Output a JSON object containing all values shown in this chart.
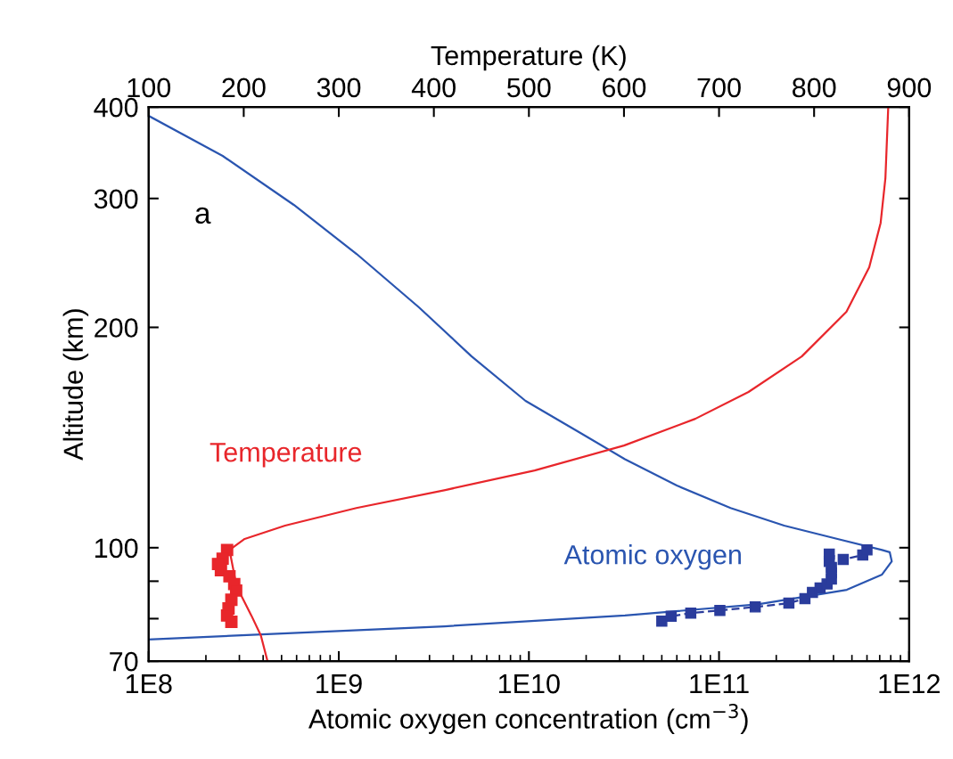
{
  "chart_data": {
    "type": "line",
    "xlabel": "Atomic oxygen concentration (cm$^{−3}$)",
    "x2label": "Temperature (K)",
    "ylabel": "Altitude (km)",
    "log": "xy",
    "grid": false,
    "legend": false,
    "xlim": [
      100000000.0,
      1000000000000.0
    ],
    "xticks": [
      {
        "value": 100000000.0,
        "label": "1E8"
      },
      {
        "value": 1000000000.0,
        "label": "1E9"
      },
      {
        "value": 10000000000.0,
        "label": "1E10"
      },
      {
        "value": 100000000000.0,
        "label": "1E11"
      },
      {
        "value": 1000000000000.0,
        "label": "1E12"
      }
    ],
    "x2lim": [
      100,
      900
    ],
    "x2ticks": [
      100,
      200,
      300,
      400,
      500,
      600,
      700,
      800,
      900
    ],
    "ylim": [
      70,
      400
    ],
    "yticks": [
      70,
      {
        "value": 80,
        "label": null
      },
      {
        "value": 90,
        "label": null
      },
      100,
      200,
      300,
      400
    ],
    "annotations": [
      "a"
    ],
    "series": [
      {
        "name": "Temperature",
        "axis": "x2",
        "color": "#e8262b",
        "marker": "none",
        "line_style": "solid",
        "x": [
          225,
          218,
          208,
          197,
          192,
          185,
          201,
          243.5,
          318.5,
          412,
          506,
          600,
          675,
          731,
          787,
          834,
          858,
          870,
          875,
          878
        ],
        "values": [
          70,
          75.9,
          80.8,
          86.2,
          89.2,
          99.3,
          102.8,
          107.2,
          113.3,
          119.9,
          127.5,
          137.9,
          150,
          163.2,
          182.5,
          210,
          241.6,
          277.8,
          319.6,
          400
        ]
      },
      {
        "type": "scatter",
        "axis": "x2",
        "color": "#e8262b",
        "marker": "square",
        "x": [
          182.5,
          177.8,
          173,
          176,
          185,
          190,
          192,
          187,
          184,
          182.5,
          187
        ],
        "values": [
          99.3,
          96.6,
          95.0,
          93.2,
          91.4,
          89.2,
          87.4,
          84.9,
          82.6,
          80.8,
          79.2
        ]
      },
      {
        "name": "Atomic oxygen",
        "color": "#2a55b0",
        "marker": "none",
        "line_style": "solid",
        "x": [
          100000000.0,
          245000000.0,
          580000000.0,
          1240000000.0,
          2640000000.0,
          5000000000.0,
          9600000000.0,
          18400000000.0,
          32000000000.0,
          60000000000.0,
          115000000000.0,
          220000000000.0,
          420000000000.0,
          720000000000.0,
          790000000000.0,
          810000000000.0,
          720000000000.0,
          470000000000.0,
          160000000000.0,
          32000000000.0,
          3600000000.0,
          420000000.0,
          100000000.0
        ],
        "values": [
          389,
          343,
          294,
          252,
          213,
          182.5,
          158.7,
          143.8,
          132.1,
          121.6,
          113.3,
          107.2,
          102.8,
          99.3,
          98.6,
          95.8,
          91.9,
          87.6,
          83.7,
          80.8,
          78.1,
          76.2,
          74.9
        ]
      },
      {
        "color": "#2a3c9c",
        "marker": "square",
        "line_style": "dashed",
        "x": [
          50000000000.0,
          56000000000.0,
          71000000000.0,
          101000000000.0,
          155000000000.0,
          233000000000.0,
          283000000000.0,
          310000000000.0,
          340000000000.0,
          370000000000.0,
          390000000000.0,
          390000000000.0,
          390000000000.0,
          380000000000.0,
          380000000000.0,
          450000000000.0,
          570000000000.0,
          600000000000.0
        ],
        "values": [
          79.4,
          80.6,
          81.4,
          82.1,
          83.0,
          84.0,
          85.2,
          86.9,
          88.1,
          89.2,
          90.6,
          92.4,
          94.0,
          95.8,
          98.0,
          96.4,
          97.7,
          99.3
        ]
      }
    ]
  }
}
